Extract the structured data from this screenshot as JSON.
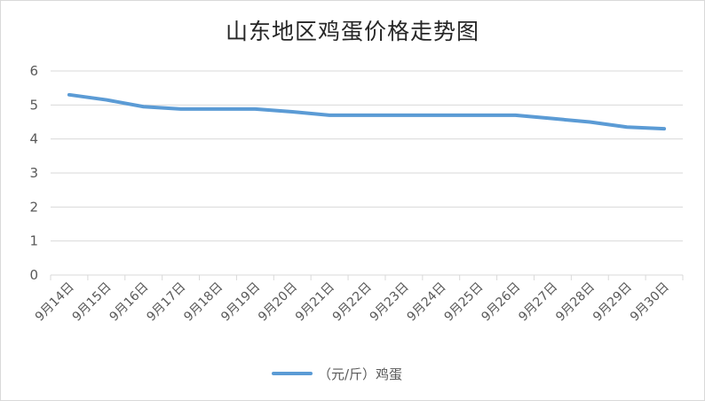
{
  "chart_data": {
    "type": "line",
    "title": "山东地区鸡蛋价格走势图",
    "categories": [
      "9月14日",
      "9月15日",
      "9月16日",
      "9月17日",
      "9月18日",
      "9月19日",
      "9月20日",
      "9月21日",
      "9月22日",
      "9月23日",
      "9月24日",
      "9月25日",
      "9月26日",
      "9月27日",
      "9月28日",
      "9月29日",
      "9月30日"
    ],
    "series": [
      {
        "name": "（元/斤）鸡蛋",
        "color": "#5b9bd5",
        "values": [
          5.3,
          5.15,
          4.95,
          4.88,
          4.88,
          4.88,
          4.8,
          4.7,
          4.7,
          4.7,
          4.7,
          4.7,
          4.7,
          4.6,
          4.5,
          4.35,
          4.3
        ]
      }
    ],
    "yticks": [
      "0",
      "1",
      "2",
      "3",
      "4",
      "5",
      "6"
    ],
    "ylim": [
      0,
      6
    ],
    "grid": true,
    "legend_position": "bottom"
  }
}
